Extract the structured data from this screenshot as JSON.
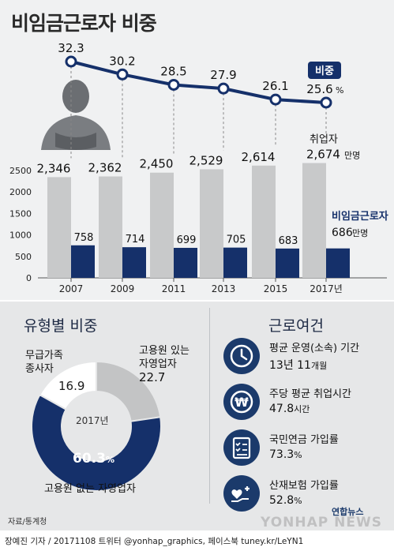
{
  "title": "비임금근로자 비중",
  "chart_data": [
    {
      "type": "line",
      "series": [
        {
          "name": "비중",
          "values": [
            32.3,
            30.2,
            28.5,
            27.9,
            26.1,
            25.6
          ]
        }
      ],
      "x": [
        "2007",
        "2009",
        "2011",
        "2013",
        "2015",
        "2017년"
      ],
      "last_label_unit": "%",
      "legend_tag": "비중",
      "ylim": [
        24,
        34
      ]
    },
    {
      "type": "bar",
      "categories": [
        "2007",
        "2009",
        "2011",
        "2013",
        "2015",
        "2017년"
      ],
      "series": [
        {
          "name": "취업자",
          "values": [
            2346,
            2362,
            2450,
            2529,
            2614,
            2674
          ],
          "color": "#c8c9ca"
        },
        {
          "name": "비임금근로자",
          "values": [
            758,
            714,
            699,
            705,
            683,
            686
          ],
          "color": "#15306a"
        }
      ],
      "y_ticks": [
        0,
        500,
        1000,
        1500,
        2000,
        2500
      ],
      "ylim": [
        0,
        2800
      ],
      "unit": "만명",
      "label_employed": "취업자",
      "label_nonwage": "비임금근로자",
      "last_employed_text": "2,674",
      "last_nonwage_text": "686",
      "employed_labels": [
        "2,346",
        "2,362",
        "2,450",
        "2,529",
        "2,614"
      ],
      "nonwage_labels": [
        "758",
        "714",
        "699",
        "705",
        "683"
      ]
    },
    {
      "type": "pie",
      "title": "유형별 비중",
      "center_label": "2017년",
      "slices": [
        {
          "name": "고용원 있는 자영업자",
          "value": 22.7,
          "color": "#c3c4c5"
        },
        {
          "name": "고용원 없는 자영업자",
          "value": 60.3,
          "color": "#15306a"
        },
        {
          "name": "무급가족 종사자",
          "value": 16.9,
          "color": "#ffffff"
        }
      ]
    }
  ],
  "pie_labels": {
    "with_employee_1": "고용원 있는",
    "with_employee_2": "자영업자",
    "with_employee_value": "22.7",
    "without_employee": "고용원 없는 자영업자",
    "without_employee_value": "60.3",
    "without_employee_unit": "%",
    "family_1": "무급가족",
    "family_2": "종사자",
    "family_value": "16.9"
  },
  "conditions": {
    "title": "근로여건",
    "items": [
      {
        "label": "평균 운영(소속) 기간",
        "value": "13년 11",
        "unit": "개월",
        "icon": "clock-icon"
      },
      {
        "label": "주당 평균 취업시간",
        "value": "47.8",
        "unit": "시간",
        "icon": "won-coin-icon"
      },
      {
        "label": "국민연금 가입률",
        "value": "73.3",
        "unit": "%",
        "icon": "checklist-icon"
      },
      {
        "label": "산재보험 가입률",
        "value": "52.8",
        "unit": "%",
        "icon": "heart-hand-icon"
      }
    ]
  },
  "source": "자료/통계청",
  "footer": "장예진 기자 / 20171108 트위터 @yonhap_graphics, 페이스북 tuney.kr/LeYN1",
  "brand": "연합뉴스",
  "watermark": "YONHAP NEWS",
  "colors": {
    "navy": "#15306a",
    "gray_bar": "#c8c9ca",
    "background": "#e6e7e8"
  }
}
